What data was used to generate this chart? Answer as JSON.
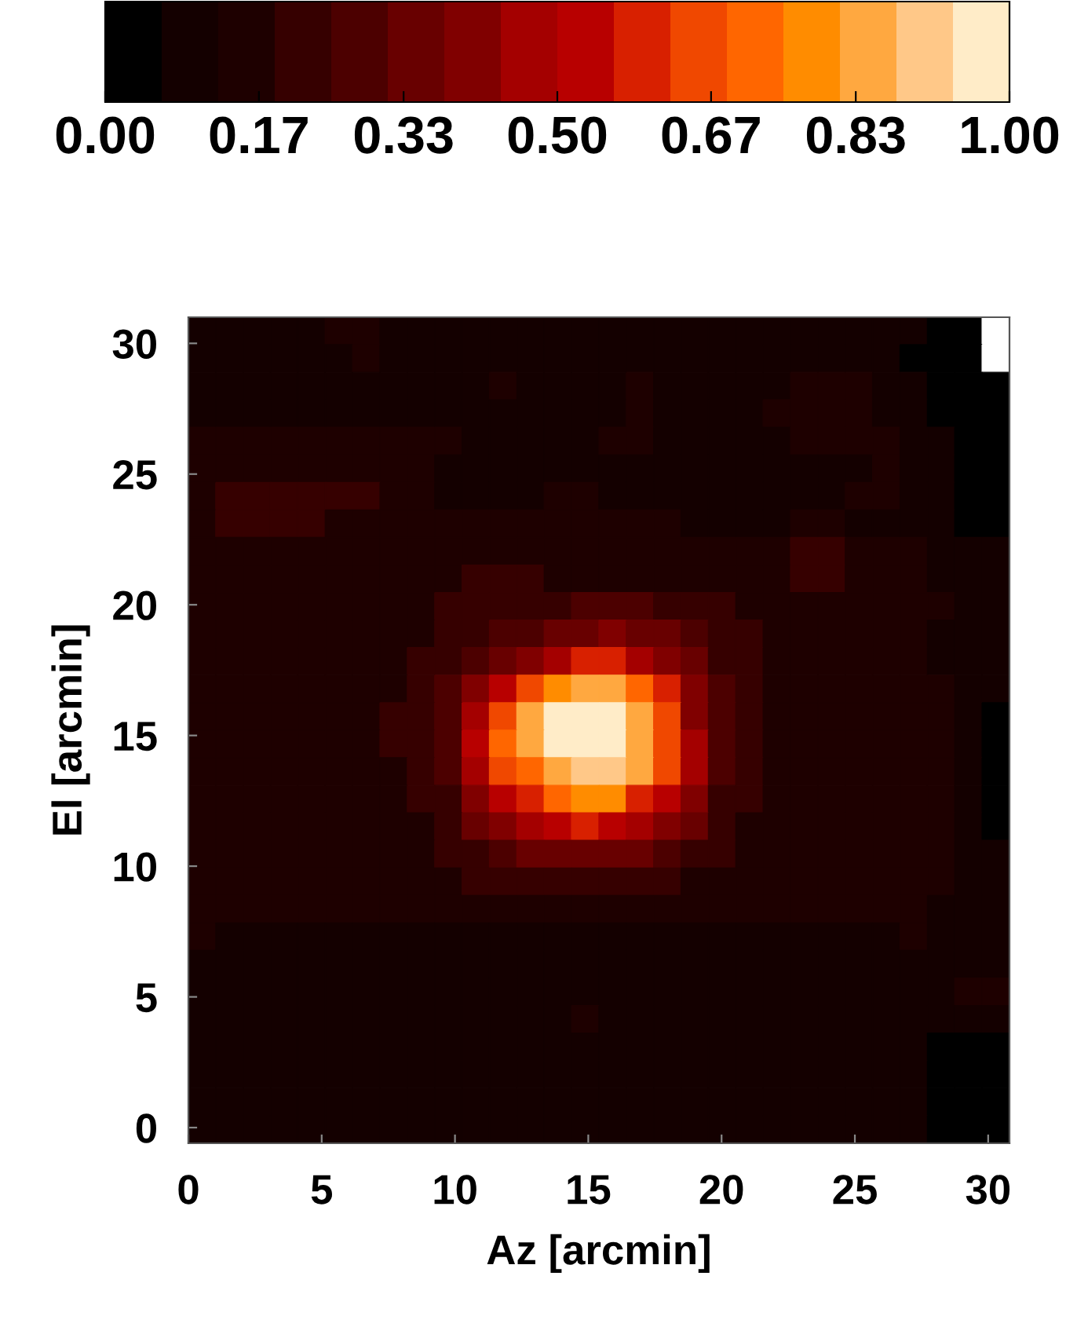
{
  "chart_data": {
    "type": "heatmap",
    "xlabel": "Az [arcmin]",
    "ylabel": "El [arcmin]",
    "xlim": [
      0,
      30.8
    ],
    "ylim": [
      -0.6,
      31
    ],
    "xticks": [
      0,
      5,
      10,
      15,
      20,
      25,
      30
    ],
    "yticks": [
      0,
      5,
      10,
      15,
      20,
      25,
      30
    ],
    "clim": [
      0,
      1
    ],
    "cticks": [
      {
        "value": 0,
        "label": "0.00"
      },
      {
        "value": 0.17,
        "label": "0.17"
      },
      {
        "value": 0.33,
        "label": "0.33"
      },
      {
        "value": 0.5,
        "label": "0.50"
      },
      {
        "value": 0.67,
        "label": "0.67"
      },
      {
        "value": 0.83,
        "label": "0.83"
      },
      {
        "value": 1,
        "label": "1.00"
      }
    ],
    "colors": [
      "#000000",
      "#140000",
      "#1e0000",
      "#360000",
      "#4c0000",
      "#680000",
      "#800000",
      "#a40000",
      "#b80000",
      "#d82000",
      "#f04800",
      "#ff6600",
      "#ff8c00",
      "#ffa840",
      "#ffc888",
      "#ffecc8"
    ],
    "cells": [
      [
        0.09,
        0.09,
        0.09,
        0.09,
        0.09,
        0.16,
        0.16,
        0.09,
        0.09,
        0.09,
        0.09,
        0.09,
        0.09,
        0.09,
        0.09,
        0.09,
        0.09,
        0.09,
        0.09,
        0.09,
        0.09,
        0.09,
        0.09,
        0.09,
        0.09,
        0.09,
        0.09,
        0.03,
        0.03,
        null
      ],
      [
        0.09,
        0.09,
        0.09,
        0.09,
        0.09,
        0.09,
        0.16,
        0.09,
        0.09,
        0.09,
        0.09,
        0.09,
        0.09,
        0.09,
        0.09,
        0.09,
        0.09,
        0.09,
        0.09,
        0.09,
        0.09,
        0.09,
        0.09,
        0.09,
        0.09,
        0.09,
        0.03,
        0.03,
        0.03,
        null
      ],
      [
        0.09,
        0.09,
        0.09,
        0.09,
        0.09,
        0.09,
        0.09,
        0.09,
        0.09,
        0.09,
        0.09,
        0.16,
        0.09,
        0.09,
        0.09,
        0.09,
        0.16,
        0.09,
        0.09,
        0.09,
        0.09,
        0.09,
        0.16,
        0.16,
        0.16,
        0.09,
        0.09,
        0.03,
        0.03,
        0.03
      ],
      [
        0.09,
        0.09,
        0.09,
        0.09,
        0.09,
        0.09,
        0.09,
        0.09,
        0.09,
        0.09,
        0.09,
        0.09,
        0.09,
        0.09,
        0.09,
        0.09,
        0.16,
        0.09,
        0.09,
        0.09,
        0.09,
        0.16,
        0.16,
        0.16,
        0.16,
        0.09,
        0.09,
        0.03,
        0.03,
        0.03
      ],
      [
        0.16,
        0.16,
        0.16,
        0.16,
        0.16,
        0.16,
        0.16,
        0.16,
        0.16,
        0.16,
        0.09,
        0.09,
        0.09,
        0.09,
        0.09,
        0.16,
        0.16,
        0.09,
        0.09,
        0.09,
        0.09,
        0.09,
        0.16,
        0.16,
        0.16,
        0.16,
        0.09,
        0.09,
        0.03,
        0.03
      ],
      [
        0.16,
        0.16,
        0.16,
        0.16,
        0.16,
        0.16,
        0.16,
        0.16,
        0.16,
        0.09,
        0.09,
        0.09,
        0.09,
        0.09,
        0.09,
        0.09,
        0.09,
        0.09,
        0.09,
        0.09,
        0.09,
        0.09,
        0.09,
        0.09,
        0.09,
        0.16,
        0.09,
        0.09,
        0.03,
        0.03
      ],
      [
        0.16,
        0.22,
        0.22,
        0.22,
        0.22,
        0.22,
        0.22,
        0.16,
        0.16,
        0.09,
        0.09,
        0.09,
        0.09,
        0.16,
        0.16,
        0.09,
        0.09,
        0.09,
        0.09,
        0.09,
        0.09,
        0.09,
        0.09,
        0.09,
        0.16,
        0.16,
        0.09,
        0.09,
        0.03,
        0.03
      ],
      [
        0.16,
        0.22,
        0.22,
        0.22,
        0.22,
        0.16,
        0.16,
        0.16,
        0.16,
        0.16,
        0.16,
        0.16,
        0.16,
        0.16,
        0.16,
        0.16,
        0.16,
        0.16,
        0.09,
        0.09,
        0.09,
        0.09,
        0.16,
        0.16,
        0.09,
        0.09,
        0.09,
        0.09,
        0.03,
        0.03
      ],
      [
        0.16,
        0.16,
        0.16,
        0.16,
        0.16,
        0.16,
        0.16,
        0.16,
        0.16,
        0.16,
        0.16,
        0.16,
        0.16,
        0.16,
        0.16,
        0.16,
        0.16,
        0.16,
        0.16,
        0.16,
        0.16,
        0.16,
        0.22,
        0.22,
        0.16,
        0.16,
        0.16,
        0.09,
        0.09,
        0.09
      ],
      [
        0.16,
        0.16,
        0.16,
        0.16,
        0.16,
        0.16,
        0.16,
        0.16,
        0.16,
        0.16,
        0.22,
        0.22,
        0.22,
        0.16,
        0.16,
        0.16,
        0.16,
        0.16,
        0.16,
        0.16,
        0.16,
        0.16,
        0.22,
        0.22,
        0.16,
        0.16,
        0.16,
        0.09,
        0.09,
        0.09
      ],
      [
        0.16,
        0.16,
        0.16,
        0.16,
        0.16,
        0.16,
        0.16,
        0.16,
        0.16,
        0.22,
        0.22,
        0.22,
        0.22,
        0.22,
        0.28,
        0.28,
        0.28,
        0.22,
        0.22,
        0.22,
        0.16,
        0.16,
        0.16,
        0.16,
        0.16,
        0.16,
        0.16,
        0.16,
        0.09,
        0.09
      ],
      [
        0.16,
        0.16,
        0.16,
        0.16,
        0.16,
        0.16,
        0.16,
        0.16,
        0.16,
        0.22,
        0.22,
        0.28,
        0.28,
        0.34,
        0.34,
        0.41,
        0.34,
        0.34,
        0.28,
        0.22,
        0.22,
        0.16,
        0.16,
        0.16,
        0.16,
        0.16,
        0.16,
        0.09,
        0.09,
        0.09
      ],
      [
        0.16,
        0.16,
        0.16,
        0.16,
        0.16,
        0.16,
        0.16,
        0.16,
        0.22,
        0.22,
        0.28,
        0.34,
        0.41,
        0.47,
        0.59,
        0.59,
        0.47,
        0.41,
        0.34,
        0.22,
        0.22,
        0.16,
        0.16,
        0.16,
        0.16,
        0.16,
        0.16,
        0.09,
        0.09,
        0.09
      ],
      [
        0.16,
        0.16,
        0.16,
        0.16,
        0.16,
        0.16,
        0.16,
        0.16,
        0.22,
        0.28,
        0.41,
        0.53,
        0.66,
        0.78,
        0.84,
        0.84,
        0.72,
        0.59,
        0.41,
        0.28,
        0.22,
        0.16,
        0.16,
        0.16,
        0.16,
        0.16,
        0.16,
        0.16,
        0.09,
        0.09
      ],
      [
        0.16,
        0.16,
        0.16,
        0.16,
        0.16,
        0.16,
        0.16,
        0.22,
        0.22,
        0.28,
        0.47,
        0.66,
        0.84,
        0.97,
        0.97,
        0.97,
        0.84,
        0.66,
        0.41,
        0.28,
        0.22,
        0.16,
        0.16,
        0.16,
        0.16,
        0.16,
        0.16,
        0.16,
        0.09,
        0.03
      ],
      [
        0.16,
        0.16,
        0.16,
        0.16,
        0.16,
        0.16,
        0.16,
        0.22,
        0.22,
        0.28,
        0.53,
        0.72,
        0.84,
        0.97,
        0.97,
        0.97,
        0.84,
        0.66,
        0.47,
        0.28,
        0.22,
        0.16,
        0.16,
        0.16,
        0.16,
        0.16,
        0.16,
        0.16,
        0.09,
        0.03
      ],
      [
        0.16,
        0.16,
        0.16,
        0.16,
        0.16,
        0.16,
        0.16,
        0.16,
        0.22,
        0.28,
        0.47,
        0.66,
        0.72,
        0.84,
        0.91,
        0.91,
        0.84,
        0.66,
        0.47,
        0.28,
        0.22,
        0.16,
        0.16,
        0.16,
        0.16,
        0.16,
        0.16,
        0.16,
        0.09,
        0.03
      ],
      [
        0.16,
        0.16,
        0.16,
        0.16,
        0.16,
        0.16,
        0.16,
        0.16,
        0.22,
        0.22,
        0.41,
        0.53,
        0.59,
        0.72,
        0.78,
        0.78,
        0.59,
        0.53,
        0.41,
        0.22,
        0.22,
        0.16,
        0.16,
        0.16,
        0.16,
        0.16,
        0.16,
        0.16,
        0.09,
        0.03
      ],
      [
        0.16,
        0.16,
        0.16,
        0.16,
        0.16,
        0.16,
        0.16,
        0.16,
        0.16,
        0.22,
        0.34,
        0.41,
        0.47,
        0.53,
        0.59,
        0.53,
        0.47,
        0.41,
        0.34,
        0.22,
        0.16,
        0.16,
        0.16,
        0.16,
        0.16,
        0.16,
        0.16,
        0.16,
        0.09,
        0.03
      ],
      [
        0.16,
        0.16,
        0.16,
        0.16,
        0.16,
        0.16,
        0.16,
        0.16,
        0.16,
        0.22,
        0.22,
        0.28,
        0.34,
        0.34,
        0.34,
        0.34,
        0.34,
        0.28,
        0.22,
        0.22,
        0.16,
        0.16,
        0.16,
        0.16,
        0.16,
        0.16,
        0.16,
        0.16,
        0.09,
        0.09
      ],
      [
        0.16,
        0.16,
        0.16,
        0.16,
        0.16,
        0.16,
        0.16,
        0.16,
        0.16,
        0.16,
        0.22,
        0.22,
        0.22,
        0.22,
        0.22,
        0.22,
        0.22,
        0.22,
        0.16,
        0.16,
        0.16,
        0.16,
        0.16,
        0.16,
        0.16,
        0.16,
        0.16,
        0.16,
        0.09,
        0.09
      ],
      [
        0.16,
        0.16,
        0.16,
        0.16,
        0.16,
        0.16,
        0.16,
        0.16,
        0.16,
        0.16,
        0.16,
        0.16,
        0.16,
        0.16,
        0.16,
        0.16,
        0.16,
        0.16,
        0.16,
        0.16,
        0.16,
        0.16,
        0.16,
        0.16,
        0.16,
        0.16,
        0.16,
        0.09,
        0.09,
        0.09
      ],
      [
        0.16,
        0.09,
        0.09,
        0.09,
        0.09,
        0.09,
        0.09,
        0.09,
        0.09,
        0.09,
        0.09,
        0.09,
        0.09,
        0.09,
        0.09,
        0.09,
        0.09,
        0.09,
        0.09,
        0.09,
        0.09,
        0.09,
        0.09,
        0.09,
        0.09,
        0.09,
        0.16,
        0.09,
        0.09,
        0.09
      ],
      [
        0.09,
        0.09,
        0.09,
        0.09,
        0.09,
        0.09,
        0.09,
        0.09,
        0.09,
        0.09,
        0.09,
        0.09,
        0.09,
        0.09,
        0.09,
        0.09,
        0.09,
        0.09,
        0.09,
        0.09,
        0.09,
        0.09,
        0.09,
        0.09,
        0.09,
        0.09,
        0.09,
        0.09,
        0.09,
        0.09
      ],
      [
        0.09,
        0.09,
        0.09,
        0.09,
        0.09,
        0.09,
        0.09,
        0.09,
        0.09,
        0.09,
        0.09,
        0.09,
        0.09,
        0.09,
        0.09,
        0.09,
        0.09,
        0.09,
        0.09,
        0.09,
        0.09,
        0.09,
        0.09,
        0.09,
        0.09,
        0.09,
        0.09,
        0.09,
        0.16,
        0.16
      ],
      [
        0.09,
        0.09,
        0.09,
        0.09,
        0.09,
        0.09,
        0.09,
        0.09,
        0.09,
        0.09,
        0.09,
        0.09,
        0.09,
        0.09,
        0.16,
        0.09,
        0.09,
        0.09,
        0.09,
        0.09,
        0.09,
        0.09,
        0.09,
        0.09,
        0.09,
        0.09,
        0.09,
        0.09,
        0.09,
        0.09
      ],
      [
        0.09,
        0.09,
        0.09,
        0.09,
        0.09,
        0.09,
        0.09,
        0.09,
        0.09,
        0.09,
        0.09,
        0.09,
        0.09,
        0.09,
        0.09,
        0.09,
        0.09,
        0.09,
        0.09,
        0.09,
        0.09,
        0.09,
        0.09,
        0.09,
        0.09,
        0.09,
        0.09,
        0.03,
        0.03,
        0.03
      ],
      [
        0.09,
        0.09,
        0.09,
        0.09,
        0.09,
        0.09,
        0.09,
        0.09,
        0.09,
        0.09,
        0.09,
        0.09,
        0.09,
        0.09,
        0.09,
        0.09,
        0.09,
        0.09,
        0.09,
        0.09,
        0.09,
        0.09,
        0.09,
        0.09,
        0.09,
        0.09,
        0.09,
        0.03,
        0.03,
        0.03
      ],
      [
        0.09,
        0.09,
        0.09,
        0.09,
        0.09,
        0.09,
        0.09,
        0.09,
        0.09,
        0.09,
        0.09,
        0.09,
        0.09,
        0.09,
        0.09,
        0.09,
        0.09,
        0.09,
        0.09,
        0.09,
        0.09,
        0.09,
        0.09,
        0.09,
        0.09,
        0.09,
        0.09,
        0.03,
        0.03,
        0.03
      ],
      [
        0.09,
        0.09,
        0.09,
        0.09,
        0.09,
        0.09,
        0.09,
        0.09,
        0.09,
        0.09,
        0.09,
        0.09,
        0.09,
        0.09,
        0.09,
        0.09,
        0.09,
        0.09,
        0.09,
        0.09,
        0.09,
        0.09,
        0.09,
        0.09,
        0.09,
        0.09,
        0.09,
        0.03,
        0.03,
        0.03
      ]
    ]
  }
}
